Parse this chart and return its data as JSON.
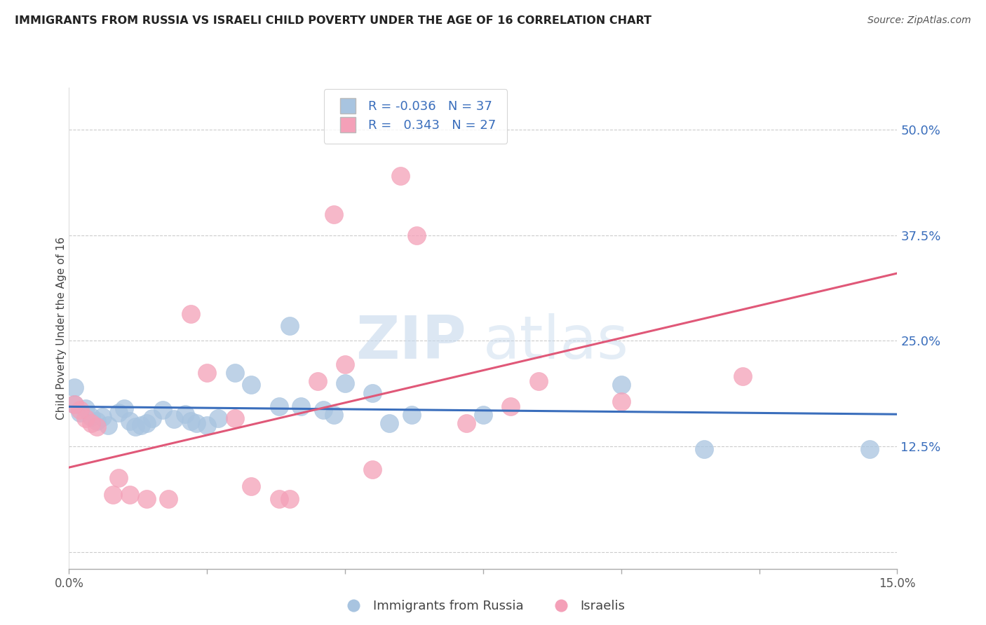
{
  "title": "IMMIGRANTS FROM RUSSIA VS ISRAELI CHILD POVERTY UNDER THE AGE OF 16 CORRELATION CHART",
  "source": "Source: ZipAtlas.com",
  "ylabel": "Child Poverty Under the Age of 16",
  "ytick_labels": [
    "12.5%",
    "25.0%",
    "37.5%",
    "50.0%"
  ],
  "ytick_values": [
    0.125,
    0.25,
    0.375,
    0.5
  ],
  "xlim": [
    0.0,
    0.15
  ],
  "ylim": [
    -0.02,
    0.55
  ],
  "legend_r_blue": "-0.036",
  "legend_n_blue": "37",
  "legend_r_pink": "0.343",
  "legend_n_pink": "27",
  "blue_color": "#a8c4e0",
  "pink_color": "#f4a0b8",
  "line_blue": "#3a6ebc",
  "line_pink": "#e05878",
  "watermark_zip": "ZIP",
  "watermark_atlas": "atlas",
  "blue_scatter_x": [
    0.001,
    0.001,
    0.002,
    0.003,
    0.004,
    0.005,
    0.006,
    0.007,
    0.009,
    0.01,
    0.011,
    0.012,
    0.013,
    0.014,
    0.015,
    0.017,
    0.019,
    0.021,
    0.022,
    0.023,
    0.025,
    0.027,
    0.03,
    0.033,
    0.038,
    0.04,
    0.042,
    0.046,
    0.048,
    0.05,
    0.055,
    0.058,
    0.062,
    0.075,
    0.1,
    0.115,
    0.145
  ],
  "blue_scatter_y": [
    0.195,
    0.175,
    0.165,
    0.17,
    0.16,
    0.155,
    0.16,
    0.15,
    0.165,
    0.17,
    0.155,
    0.148,
    0.15,
    0.152,
    0.158,
    0.168,
    0.157,
    0.163,
    0.155,
    0.152,
    0.15,
    0.158,
    0.212,
    0.198,
    0.172,
    0.268,
    0.172,
    0.168,
    0.162,
    0.2,
    0.188,
    0.152,
    0.162,
    0.162,
    0.198,
    0.122,
    0.122
  ],
  "pink_scatter_x": [
    0.001,
    0.002,
    0.003,
    0.004,
    0.005,
    0.008,
    0.009,
    0.011,
    0.014,
    0.018,
    0.022,
    0.025,
    0.03,
    0.033,
    0.038,
    0.04,
    0.045,
    0.048,
    0.05,
    0.055,
    0.06,
    0.063,
    0.072,
    0.08,
    0.085,
    0.1,
    0.122
  ],
  "pink_scatter_y": [
    0.175,
    0.168,
    0.158,
    0.152,
    0.148,
    0.068,
    0.088,
    0.068,
    0.063,
    0.063,
    0.282,
    0.212,
    0.158,
    0.078,
    0.063,
    0.063,
    0.202,
    0.4,
    0.222,
    0.098,
    0.445,
    0.375,
    0.152,
    0.172,
    0.202,
    0.178,
    0.208
  ],
  "blue_line_x": [
    0.0,
    0.15
  ],
  "blue_line_y": [
    0.172,
    0.163
  ],
  "pink_line_x": [
    0.0,
    0.15
  ],
  "pink_line_y": [
    0.1,
    0.33
  ]
}
